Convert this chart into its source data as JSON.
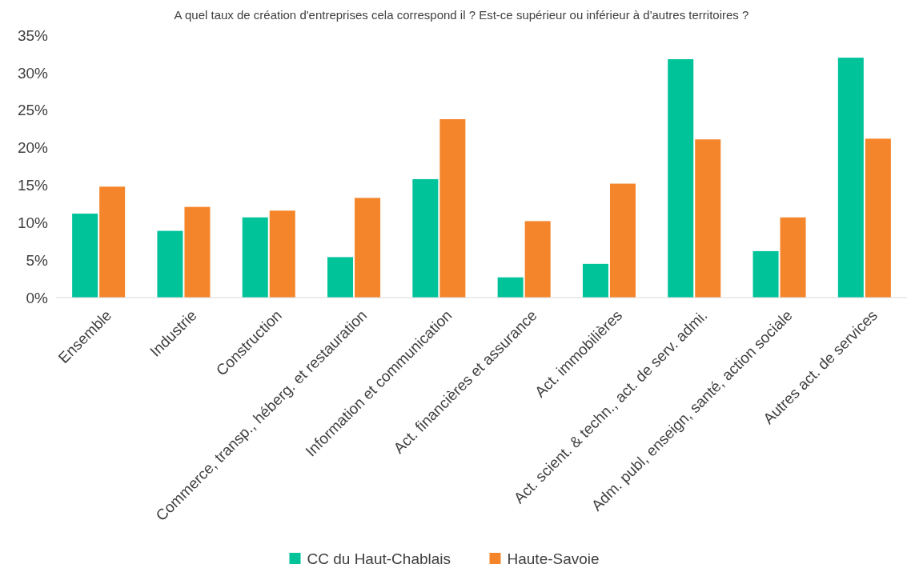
{
  "chart_data": {
    "type": "bar",
    "title": "A quel taux de création d'entreprises cela correspond il ? Est-ce supérieur ou inférieur à d'autres territoires ?",
    "categories": [
      "Ensemble",
      "Industrie",
      "Construction",
      "Commerce, transp., héberg. et restauration",
      "Information et communication",
      "Act. financières et assurance",
      "Act. immobilières",
      "Act. scient. & techn., act. de serv. admi.",
      "Adm. publ, enseign, santé, action sociale",
      "Autres act. de services"
    ],
    "series": [
      {
        "name": "CC du Haut-Chablais",
        "color": "#00c39a",
        "values": [
          11.2,
          8.9,
          10.7,
          5.4,
          15.8,
          2.7,
          4.5,
          31.8,
          6.2,
          32.0
        ]
      },
      {
        "name": "Haute-Savoie",
        "color": "#f5852a",
        "values": [
          14.8,
          12.1,
          11.6,
          13.3,
          23.8,
          10.2,
          15.2,
          21.1,
          10.7,
          21.2
        ]
      }
    ],
    "ylim": [
      0,
      35
    ],
    "yticks": [
      {
        "value": 0,
        "label": "0%"
      },
      {
        "value": 5,
        "label": "5%"
      },
      {
        "value": 10,
        "label": "10%"
      },
      {
        "value": 15,
        "label": "15%"
      },
      {
        "value": 20,
        "label": "20%"
      },
      {
        "value": 25,
        "label": "25%"
      },
      {
        "value": 30,
        "label": "30%"
      },
      {
        "value": 35,
        "label": "35%"
      }
    ],
    "grid": false,
    "legend": "bottom"
  }
}
